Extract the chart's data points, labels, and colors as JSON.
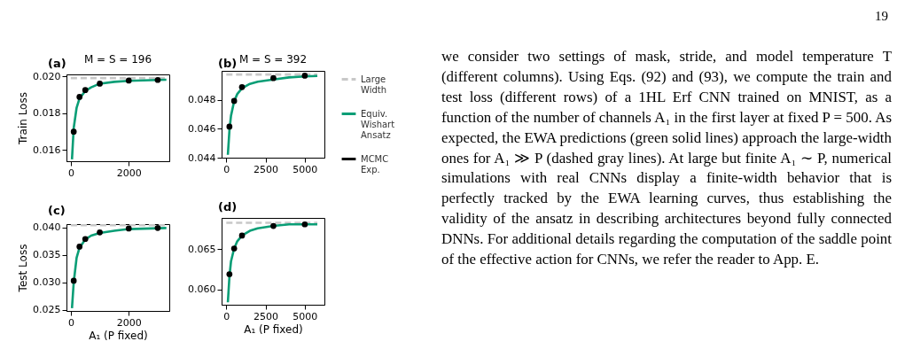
{
  "chart_data": [
    {
      "type": "line",
      "title": "M = S = 196",
      "ylabel": "Train Loss",
      "annotations": [
        "(a)"
      ],
      "xlim": [
        -150,
        3400
      ],
      "xticks": [
        0,
        2000
      ],
      "ylim": [
        0.0154,
        0.0201
      ],
      "yticks": [
        0.016,
        0.018,
        {
          "value": 0.02,
          "label": "0.020"
        }
      ],
      "series": [
        {
          "type": "line",
          "color": "#c8c8c8",
          "line_style": "dashed",
          "x": [
            0,
            3300
          ],
          "values": [
            0.0199,
            0.0199
          ]
        },
        {
          "type": "line",
          "color": "#0a9e76",
          "x": [
            40,
            100,
            200,
            300,
            500,
            700,
            1000,
            1500,
            2000,
            3000,
            3300
          ],
          "values": [
            0.0155,
            0.0172,
            0.0183,
            0.0188,
            0.0192,
            0.0194,
            0.0196,
            0.0197,
            0.01975,
            0.0198,
            0.01981
          ]
        },
        {
          "type": "scatter",
          "color": "#000000",
          "marker": "circle",
          "x": [
            100,
            300,
            500,
            1000,
            2000,
            3000
          ],
          "values": [
            0.017,
            0.01888,
            0.01925,
            0.0196,
            0.01977,
            0.0198
          ]
        }
      ]
    },
    {
      "type": "line",
      "title": "M = S = 392",
      "annotations": [
        "(b)"
      ],
      "xlim": [
        -300,
        6250
      ],
      "xticks": [
        0,
        2500,
        5000
      ],
      "ylim": [
        0.044,
        0.05
      ],
      "yticks": [
        0.044,
        0.046,
        0.048
      ],
      "legend": "right",
      "series": [
        {
          "name": "Large Width",
          "type": "line",
          "color": "#c8c8c8",
          "line_style": "dashed",
          "x": [
            0,
            5800
          ],
          "values": [
            0.04975,
            0.04975
          ]
        },
        {
          "name": "Equiv. Wishart Ansatz",
          "type": "line",
          "color": "#0a9e76",
          "x": [
            100,
            200,
            300,
            500,
            700,
            1000,
            1500,
            2000,
            3000,
            4000,
            5000,
            5800
          ],
          "values": [
            0.0442,
            0.0459,
            0.0469,
            0.0479,
            0.0484,
            0.0488,
            0.0491,
            0.04925,
            0.0494,
            0.04955,
            0.04962,
            0.04965
          ]
        },
        {
          "name": "MCMC Exp.",
          "type": "scatter",
          "color": "#000000",
          "marker": "circle",
          "x": [
            200,
            500,
            1000,
            3000,
            5000
          ],
          "values": [
            0.04615,
            0.04792,
            0.04888,
            0.0495,
            0.04967
          ]
        }
      ]
    },
    {
      "type": "line",
      "ylabel": "Test Loss",
      "xlabel": "A₁ (P fixed)",
      "annotations": [
        "(c)"
      ],
      "xlim": [
        -150,
        3400
      ],
      "xticks": [
        0,
        2000
      ],
      "ylim": [
        0.0248,
        0.0406
      ],
      "yticks": [
        0.025,
        {
          "value": 0.03,
          "label": "0.030"
        },
        0.035,
        {
          "value": 0.04,
          "label": "0.040"
        }
      ],
      "series": [
        {
          "type": "line",
          "color": "#c8c8c8",
          "line_style": "dashed",
          "x": [
            0,
            3300
          ],
          "values": [
            0.0404,
            0.0404
          ]
        },
        {
          "type": "line",
          "color": "#0a9e76",
          "x": [
            40,
            100,
            200,
            300,
            500,
            700,
            1000,
            1500,
            2000,
            3300
          ],
          "values": [
            0.0253,
            0.03,
            0.0345,
            0.0363,
            0.0378,
            0.0385,
            0.039,
            0.0394,
            0.0397,
            0.0399
          ]
        },
        {
          "type": "scatter",
          "color": "#000000",
          "marker": "circle",
          "x": [
            100,
            300,
            500,
            1000,
            2000,
            3000
          ],
          "values": [
            0.0303,
            0.0365,
            0.0379,
            0.0391,
            0.0398,
            0.0399
          ]
        }
      ]
    },
    {
      "type": "line",
      "xlabel": "A₁ (P fixed)",
      "annotations": [
        "(d)"
      ],
      "xlim": [
        -300,
        6250
      ],
      "xticks": [
        0,
        2500,
        5000
      ],
      "ylim": [
        0.0581,
        0.0689
      ],
      "yticks": [
        {
          "value": 0.06,
          "label": "0.060"
        },
        0.065
      ],
      "series": [
        {
          "type": "line",
          "color": "#c8c8c8",
          "line_style": "dashed",
          "x": [
            0,
            5800
          ],
          "values": [
            0.0683,
            0.0683
          ]
        },
        {
          "type": "line",
          "color": "#0a9e76",
          "x": [
            100,
            200,
            300,
            500,
            700,
            1000,
            1500,
            2000,
            3000,
            4000,
            5800
          ],
          "values": [
            0.0584,
            0.0616,
            0.0635,
            0.0651,
            0.066,
            0.0667,
            0.0673,
            0.0676,
            0.0679,
            0.0681,
            0.0681
          ]
        },
        {
          "type": "scatter",
          "color": "#000000",
          "marker": "circle",
          "x": [
            200,
            500,
            1000,
            3000,
            5000
          ],
          "values": [
            0.0619,
            0.0651,
            0.0667,
            0.0679,
            0.0681
          ]
        }
      ]
    },
    {
      "type": "other",
      "annotations": [
        "we consider two settings of mask, stride, and model temperature T (different columns). Using Eqs. (92) and (93), we compute the train and test loss (different rows) of a 1HL Erf CNN trained on MNIST, as a function of the number of channels A₁ in the first layer at fixed P = 500. As expected, the EWA predictions (green solid lines) approach the large-width ones for A₁ ≫ P (dashed gray lines). At large but finite A₁ ∼ P, numerical simulations with real CNNs display a finite-width behavior that is perfectly tracked by the EWA learning curves, thus establishing the validity of the ansatz in describing architectures beyond fully connected DNNs. For additional details regarding the computation of the saddle point of the effective action for CNNs, we refer the reader to App. E.",
        "19"
      ]
    }
  ]
}
